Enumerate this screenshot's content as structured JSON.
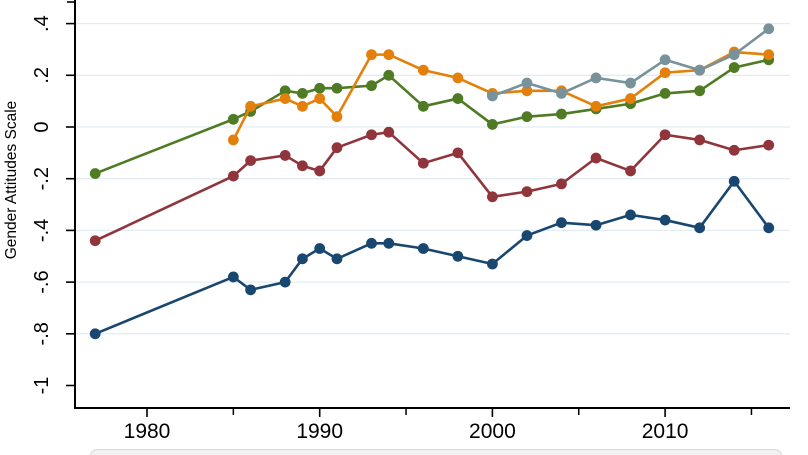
{
  "chart_data": {
    "type": "line",
    "title": "",
    "xlabel": "",
    "ylabel": "Gender Attitudes Scale",
    "grid": true,
    "legend_position": "none-visible (box cropped at bottom edge)",
    "xlim": [
      1975.5,
      2017.5
    ],
    "ylim_visible": [
      -1.09,
      0.49
    ],
    "x": [
      1977,
      1985,
      1986,
      1988,
      1989,
      1990,
      1991,
      1993,
      1994,
      1996,
      1998,
      2000,
      2002,
      2004,
      2006,
      2008,
      2010,
      2012,
      2014,
      2016
    ],
    "series": [
      {
        "name": "navy",
        "color": "#1a476f",
        "values": [
          -0.8,
          -0.58,
          -0.63,
          -0.6,
          -0.51,
          -0.47,
          -0.51,
          -0.45,
          -0.45,
          -0.47,
          -0.5,
          -0.53,
          -0.42,
          -0.37,
          -0.38,
          -0.34,
          -0.36,
          -0.39,
          -0.21,
          -0.39
        ]
      },
      {
        "name": "maroon",
        "color": "#90353b",
        "values": [
          -0.44,
          -0.19,
          -0.13,
          -0.11,
          -0.15,
          -0.17,
          -0.08,
          -0.03,
          -0.02,
          -0.14,
          -0.1,
          -0.27,
          -0.25,
          -0.22,
          -0.12,
          -0.17,
          -0.03,
          -0.05,
          -0.09,
          -0.07
        ]
      },
      {
        "name": "forest-green",
        "color": "#4e7b24",
        "values": [
          -0.18,
          0.03,
          0.06,
          0.14,
          0.13,
          0.15,
          0.15,
          0.16,
          0.2,
          0.08,
          0.11,
          0.01,
          0.04,
          0.05,
          0.07,
          0.09,
          0.13,
          0.14,
          0.23,
          0.26
        ]
      },
      {
        "name": "orange",
        "color": "#e3800c",
        "values": [
          null,
          -0.05,
          0.08,
          0.11,
          0.08,
          0.11,
          0.04,
          0.28,
          0.28,
          0.22,
          0.19,
          0.13,
          0.14,
          0.14,
          0.08,
          0.11,
          0.21,
          0.22,
          0.29,
          0.28
        ]
      },
      {
        "name": "slate-gray",
        "color": "#78929b",
        "values": [
          null,
          null,
          null,
          null,
          null,
          null,
          null,
          null,
          null,
          null,
          null,
          0.12,
          0.17,
          0.13,
          0.19,
          0.17,
          0.26,
          0.22,
          0.28,
          0.38
        ]
      }
    ],
    "x_ticks_major": [
      "1980",
      "1990",
      "2000",
      "2010"
    ],
    "x_ticks_minor": [
      "1985",
      "1995",
      "2005",
      "2015"
    ],
    "y_ticks": [
      {
        "label": ".4",
        "value": 0.4
      },
      {
        "label": ".2",
        "value": 0.2
      },
      {
        "label": "0",
        "value": 0.0
      },
      {
        "label": "-.2",
        "value": -0.2
      },
      {
        "label": "-.4",
        "value": -0.4
      },
      {
        "label": "-.6",
        "value": -0.6
      },
      {
        "label": "-.8",
        "value": -0.8
      },
      {
        "label": "-1",
        "value": -1.0
      }
    ],
    "gridline_values": [
      0.4,
      0.2,
      0.0,
      -0.2,
      -0.4,
      -0.6,
      -0.8
    ]
  }
}
